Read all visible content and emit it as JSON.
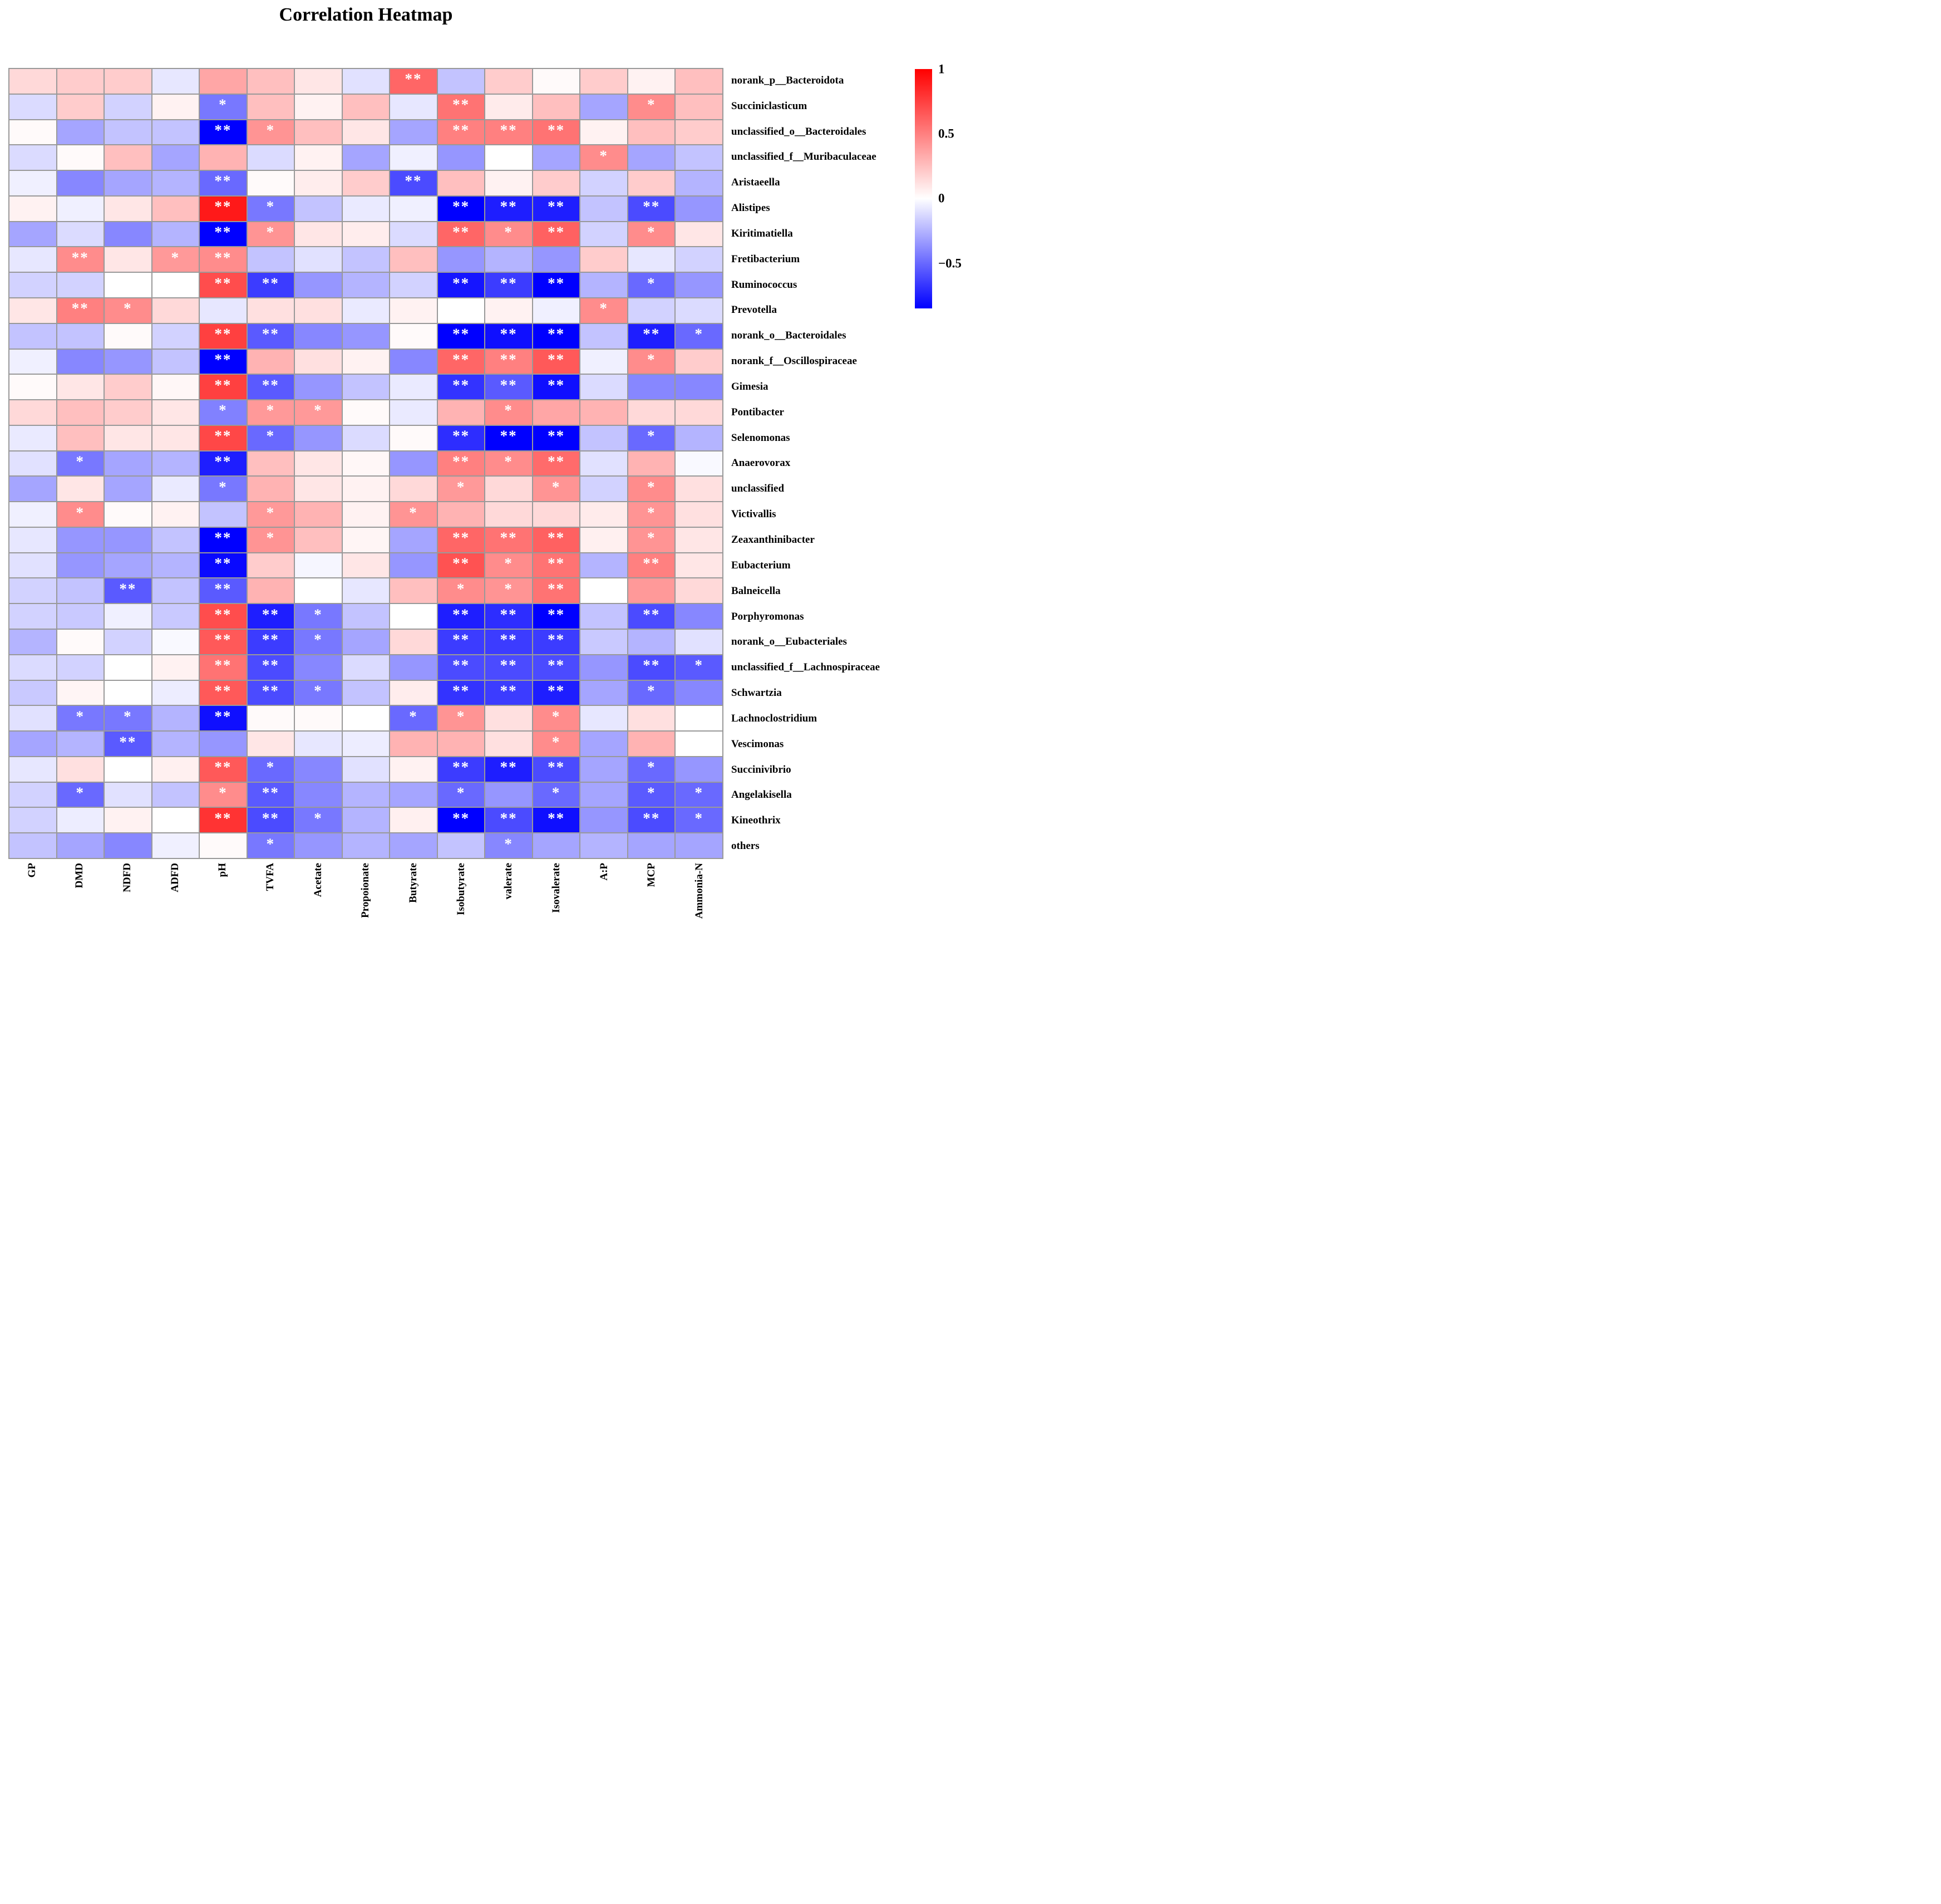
{
  "title": "Correlation Heatmap",
  "chart_data": {
    "type": "heatmap",
    "title": "Correlation Heatmap",
    "colormap": {
      "positive_max_color": "#ff0000",
      "zero_color": "#ffffff",
      "negative_max_color": "#0000ff",
      "grid_color": "#999999"
    },
    "vmax": 1,
    "vmin": -0.85,
    "colorbar_ticks": [
      "1",
      "0.5",
      "0",
      "−0.5"
    ],
    "colorbar_tick_values": [
      1,
      0.5,
      0,
      -0.5
    ],
    "legend_position": "right",
    "categories": [
      "GP",
      "DMD",
      "NDFD",
      "ADFD",
      "pH",
      "TVFA",
      "Acetate",
      "Propoionate",
      "Butyrate",
      "Isobutyrate",
      "valerate",
      "Isovalerate",
      "A:P",
      "MCP",
      "Ammonia-N"
    ],
    "rows": [
      "norank_p__Bacteroidota",
      "Succiniclasticum",
      "unclassified_o__Bacteroidales",
      "unclassified_f__Muribaculaceae",
      "Aristaeella",
      "Alistipes",
      "Kiritimatiella",
      "Fretibacterium",
      "Ruminococcus",
      "Prevotella",
      "norank_o__Bacteroidales",
      "norank_f__Oscillospiraceae",
      "Gimesia",
      "Pontibacter",
      "Selenomonas",
      "Anaerovorax",
      "unclassified",
      "Victivallis",
      "Zeaxanthinibacter",
      "Eubacterium",
      "Balneicella",
      "Porphyromonas",
      "norank_o__Eubacteriales",
      "unclassified_f__Lachnospiraceae",
      "Schwartzia",
      "Lachnoclostridium",
      "Vescimonas",
      "Succinivibrio",
      "Angelakisella",
      "Kineothrix",
      "others"
    ],
    "values": [
      [
        0.15,
        0.2,
        0.2,
        -0.08,
        0.35,
        0.25,
        0.1,
        -0.1,
        0.6,
        -0.2,
        0.2,
        0.02,
        0.2,
        0.05,
        0.25
      ],
      [
        -0.12,
        0.2,
        -0.15,
        0.05,
        -0.45,
        0.25,
        0.05,
        0.25,
        -0.08,
        0.55,
        0.08,
        0.25,
        -0.3,
        0.45,
        0.25
      ],
      [
        0.02,
        -0.3,
        -0.2,
        -0.2,
        -0.85,
        0.42,
        0.25,
        0.1,
        -0.3,
        0.5,
        0.5,
        0.55,
        0.05,
        0.25,
        0.2
      ],
      [
        -0.12,
        0.02,
        0.25,
        -0.3,
        0.3,
        -0.12,
        0.05,
        -0.3,
        -0.05,
        -0.35,
        0.0,
        -0.3,
        0.45,
        -0.3,
        -0.2
      ],
      [
        -0.05,
        -0.4,
        -0.3,
        -0.25,
        -0.5,
        0.02,
        0.07,
        0.2,
        -0.6,
        0.25,
        0.05,
        0.2,
        -0.15,
        0.2,
        -0.25
      ],
      [
        0.05,
        -0.05,
        0.1,
        0.25,
        0.9,
        -0.45,
        -0.2,
        -0.07,
        -0.05,
        -0.85,
        -0.75,
        -0.75,
        -0.2,
        -0.6,
        -0.35
      ],
      [
        -0.3,
        -0.12,
        -0.4,
        -0.25,
        -0.85,
        0.42,
        0.1,
        0.07,
        -0.12,
        0.6,
        0.45,
        0.62,
        -0.15,
        0.45,
        0.1
      ],
      [
        -0.08,
        0.45,
        0.1,
        0.4,
        0.45,
        -0.2,
        -0.1,
        -0.2,
        0.25,
        -0.35,
        -0.25,
        -0.35,
        0.2,
        -0.08,
        -0.15
      ],
      [
        -0.15,
        -0.15,
        0.0,
        0.0,
        0.7,
        -0.65,
        -0.35,
        -0.25,
        -0.15,
        -0.78,
        -0.65,
        -0.85,
        -0.25,
        -0.5,
        -0.35
      ],
      [
        0.1,
        0.5,
        0.45,
        0.15,
        -0.08,
        0.12,
        0.12,
        -0.07,
        0.05,
        0.0,
        0.05,
        -0.05,
        0.45,
        -0.15,
        -0.12
      ],
      [
        -0.2,
        -0.2,
        0.02,
        -0.15,
        0.75,
        -0.55,
        -0.4,
        -0.35,
        0.02,
        -0.85,
        -0.8,
        -0.85,
        -0.2,
        -0.75,
        -0.5
      ],
      [
        -0.05,
        -0.4,
        -0.35,
        -0.2,
        -0.85,
        0.3,
        0.12,
        0.05,
        -0.4,
        0.6,
        0.5,
        0.65,
        -0.05,
        0.45,
        0.2
      ],
      [
        0.02,
        0.1,
        0.2,
        0.03,
        0.75,
        -0.55,
        -0.35,
        -0.2,
        -0.07,
        -0.68,
        -0.55,
        -0.8,
        -0.12,
        -0.4,
        -0.4
      ],
      [
        0.15,
        0.25,
        0.2,
        0.1,
        -0.42,
        0.4,
        0.4,
        0.02,
        -0.07,
        0.3,
        0.45,
        0.35,
        0.3,
        0.15,
        0.15
      ],
      [
        -0.07,
        0.25,
        0.1,
        0.1,
        0.72,
        -0.5,
        -0.35,
        -0.12,
        0.02,
        -0.7,
        -0.85,
        -0.85,
        -0.2,
        -0.5,
        -0.25
      ],
      [
        -0.1,
        -0.45,
        -0.3,
        -0.25,
        -0.75,
        0.25,
        0.1,
        0.03,
        -0.35,
        0.5,
        0.45,
        0.58,
        -0.1,
        0.3,
        -0.02
      ],
      [
        -0.3,
        0.1,
        -0.3,
        -0.07,
        -0.45,
        0.3,
        0.1,
        0.05,
        0.15,
        0.4,
        0.15,
        0.42,
        -0.15,
        0.45,
        0.12
      ],
      [
        -0.05,
        0.45,
        0.02,
        0.05,
        -0.2,
        0.4,
        0.3,
        0.05,
        0.42,
        0.3,
        0.15,
        0.15,
        0.08,
        0.42,
        0.12
      ],
      [
        -0.08,
        -0.35,
        -0.35,
        -0.2,
        -0.85,
        0.42,
        0.25,
        0.04,
        -0.3,
        0.6,
        0.55,
        0.62,
        0.06,
        0.42,
        0.1
      ],
      [
        -0.1,
        -0.35,
        -0.3,
        -0.25,
        -0.82,
        0.2,
        -0.03,
        0.1,
        -0.35,
        0.68,
        0.45,
        0.55,
        -0.25,
        0.5,
        0.1
      ],
      [
        -0.15,
        -0.2,
        -0.55,
        -0.2,
        -0.55,
        0.3,
        0.0,
        -0.08,
        0.25,
        0.45,
        0.42,
        0.55,
        0.0,
        0.4,
        0.15
      ],
      [
        -0.15,
        -0.18,
        -0.05,
        -0.18,
        0.7,
        -0.75,
        -0.45,
        -0.2,
        0.0,
        -0.75,
        -0.7,
        -0.85,
        -0.2,
        -0.6,
        -0.4
      ],
      [
        -0.25,
        0.02,
        -0.15,
        -0.02,
        0.65,
        -0.65,
        -0.45,
        -0.3,
        0.15,
        -0.65,
        -0.65,
        -0.65,
        -0.18,
        -0.25,
        -0.1
      ],
      [
        -0.12,
        -0.15,
        0.0,
        0.05,
        0.55,
        -0.6,
        -0.4,
        -0.12,
        -0.35,
        -0.6,
        -0.6,
        -0.6,
        -0.35,
        -0.6,
        -0.55
      ],
      [
        -0.18,
        0.04,
        0.0,
        -0.06,
        0.65,
        -0.6,
        -0.45,
        -0.2,
        0.07,
        -0.68,
        -0.65,
        -0.75,
        -0.3,
        -0.5,
        -0.4
      ],
      [
        -0.1,
        -0.45,
        -0.45,
        -0.25,
        -0.8,
        0.02,
        0.02,
        0.0,
        -0.5,
        0.42,
        0.12,
        0.45,
        -0.08,
        0.12,
        0.0
      ],
      [
        -0.3,
        -0.25,
        -0.55,
        -0.25,
        -0.35,
        0.1,
        -0.08,
        -0.06,
        0.3,
        0.3,
        0.12,
        0.45,
        -0.3,
        0.3,
        0.0
      ],
      [
        -0.08,
        0.12,
        0.0,
        0.06,
        0.65,
        -0.5,
        -0.4,
        -0.1,
        0.05,
        -0.65,
        -0.75,
        -0.6,
        -0.3,
        -0.5,
        -0.35
      ],
      [
        -0.15,
        -0.5,
        -0.1,
        -0.2,
        0.45,
        -0.55,
        -0.4,
        -0.25,
        -0.3,
        -0.5,
        -0.35,
        -0.5,
        -0.3,
        -0.55,
        -0.5
      ],
      [
        -0.15,
        -0.06,
        0.05,
        0.0,
        0.8,
        -0.6,
        -0.45,
        -0.25,
        0.06,
        -0.85,
        -0.6,
        -0.8,
        -0.35,
        -0.6,
        -0.5
      ],
      [
        -0.2,
        -0.3,
        -0.4,
        -0.05,
        0.02,
        -0.45,
        -0.35,
        -0.25,
        -0.3,
        -0.2,
        -0.4,
        -0.3,
        -0.25,
        -0.3,
        -0.3
      ]
    ],
    "significance": [
      [
        "",
        "",
        "",
        "",
        "",
        "",
        "",
        "",
        "**",
        "",
        "",
        "",
        "",
        "",
        ""
      ],
      [
        "",
        "",
        "",
        "",
        "*",
        "",
        "",
        "",
        "",
        "**",
        "",
        "",
        "",
        "*",
        ""
      ],
      [
        "",
        "",
        "",
        "",
        "**",
        "*",
        "",
        "",
        "",
        "**",
        "**",
        "**",
        "",
        "",
        ""
      ],
      [
        "",
        "",
        "",
        "",
        "",
        "",
        "",
        "",
        "",
        "",
        "",
        "",
        "*",
        "",
        ""
      ],
      [
        "",
        "",
        "",
        "",
        "**",
        "",
        "",
        "",
        "**",
        "",
        "",
        "",
        "",
        "",
        ""
      ],
      [
        "",
        "",
        "",
        "",
        "**",
        "*",
        "",
        "",
        "",
        "**",
        "**",
        "**",
        "",
        "**",
        ""
      ],
      [
        "",
        "",
        "",
        "",
        "**",
        "*",
        "",
        "",
        "",
        "**",
        "*",
        "**",
        "",
        "*",
        ""
      ],
      [
        "",
        "**",
        "",
        "*",
        "**",
        "",
        "",
        "",
        "",
        "",
        "",
        "",
        "",
        "",
        ""
      ],
      [
        "",
        "",
        "",
        "",
        "**",
        "**",
        "",
        "",
        "",
        "**",
        "**",
        "**",
        "",
        "*",
        ""
      ],
      [
        "",
        "**",
        "*",
        "",
        "",
        "",
        "",
        "",
        "",
        "",
        "",
        "",
        "*",
        "",
        ""
      ],
      [
        "",
        "",
        "",
        "",
        "**",
        "**",
        "",
        "",
        "",
        "**",
        "**",
        "**",
        "",
        "**",
        "*"
      ],
      [
        "",
        "",
        "",
        "",
        "**",
        "",
        "",
        "",
        "",
        "**",
        "**",
        "**",
        "",
        "*",
        ""
      ],
      [
        "",
        "",
        "",
        "",
        "**",
        "**",
        "",
        "",
        "",
        "**",
        "**",
        "**",
        "",
        "",
        ""
      ],
      [
        "",
        "",
        "",
        "",
        "*",
        "*",
        "*",
        "",
        "",
        "",
        "*",
        "",
        "",
        "",
        ""
      ],
      [
        "",
        "",
        "",
        "",
        "**",
        "*",
        "",
        "",
        "",
        "**",
        "**",
        "**",
        "",
        "*",
        ""
      ],
      [
        "",
        "*",
        "",
        "",
        "**",
        "",
        "",
        "",
        "",
        "**",
        "*",
        "**",
        "",
        "",
        ""
      ],
      [
        "",
        "",
        "",
        "",
        "*",
        "",
        "",
        "",
        "",
        "*",
        "",
        "*",
        "",
        "*",
        ""
      ],
      [
        "",
        "*",
        "",
        "",
        "",
        "*",
        "",
        "",
        "*",
        "",
        "",
        "",
        "",
        "*",
        ""
      ],
      [
        "",
        "",
        "",
        "",
        "**",
        "*",
        "",
        "",
        "",
        "**",
        "**",
        "**",
        "",
        "*",
        ""
      ],
      [
        "",
        "",
        "",
        "",
        "**",
        "",
        "",
        "",
        "",
        "**",
        "*",
        "**",
        "",
        "**",
        ""
      ],
      [
        "",
        "",
        "**",
        "",
        "**",
        "",
        "",
        "",
        "",
        "*",
        "*",
        "**",
        "",
        "",
        ""
      ],
      [
        "",
        "",
        "",
        "",
        "**",
        "**",
        "*",
        "",
        "",
        "**",
        "**",
        "**",
        "",
        "**",
        ""
      ],
      [
        "",
        "",
        "",
        "",
        "**",
        "**",
        "*",
        "",
        "",
        "**",
        "**",
        "**",
        "",
        "",
        ""
      ],
      [
        "",
        "",
        "",
        "",
        "**",
        "**",
        "",
        "",
        "",
        "**",
        "**",
        "**",
        "",
        "**",
        "*"
      ],
      [
        "",
        "",
        "",
        "",
        "**",
        "**",
        "*",
        "",
        "",
        "**",
        "**",
        "**",
        "",
        "*",
        ""
      ],
      [
        "",
        "*",
        "*",
        "",
        "**",
        "",
        "",
        "",
        "*",
        "*",
        "",
        "*",
        "",
        "",
        ""
      ],
      [
        "",
        "",
        "**",
        "",
        "",
        "",
        "",
        "",
        "",
        "",
        "",
        "*",
        "",
        "",
        ""
      ],
      [
        "",
        "",
        "",
        "",
        "**",
        "*",
        "",
        "",
        "",
        "**",
        "**",
        "**",
        "",
        "*",
        ""
      ],
      [
        "",
        "*",
        "",
        "",
        "*",
        "**",
        "",
        "",
        "",
        "*",
        "",
        "*",
        "",
        "*",
        "*"
      ],
      [
        "",
        "",
        "",
        "",
        "**",
        "**",
        "*",
        "",
        "",
        "**",
        "**",
        "**",
        "",
        "**",
        "*"
      ],
      [
        "",
        "",
        "",
        "",
        "",
        "*",
        "",
        "",
        "",
        "",
        "*",
        "",
        "",
        "",
        ""
      ]
    ]
  }
}
